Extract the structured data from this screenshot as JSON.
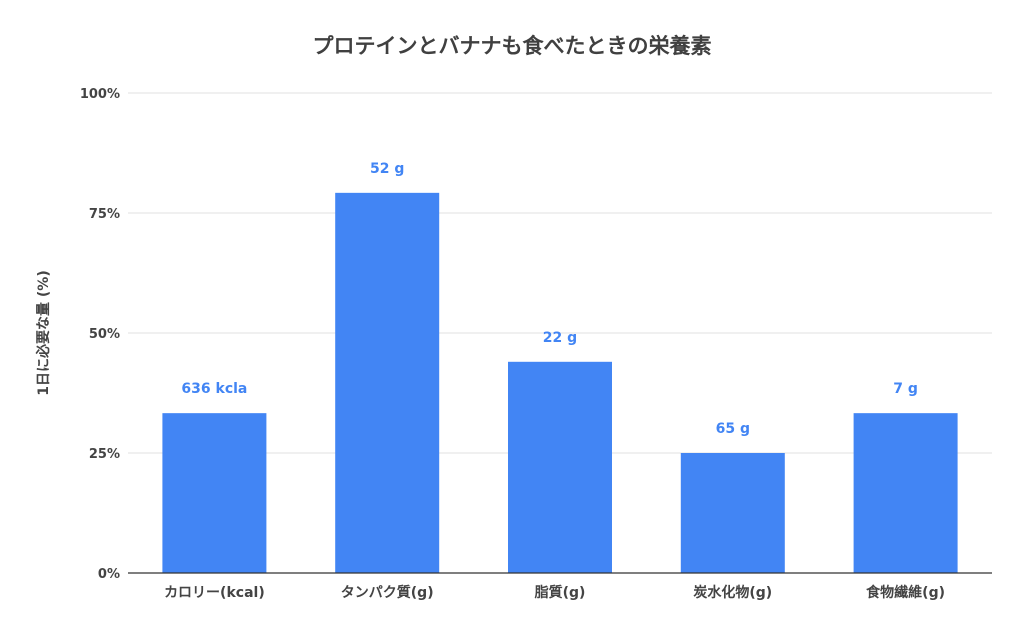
{
  "chart_data": {
    "type": "bar",
    "title": "プロテインとバナナも食べたときの栄養素",
    "xlabel": "",
    "ylabel": "1日に必要な量 (%)",
    "categories": [
      "カロリー(kcal)",
      "タンパク質(g)",
      "脂質(g)",
      "炭水化物(g)",
      "食物繊維(g)"
    ],
    "values": [
      33.3,
      79.2,
      44.0,
      25.0,
      33.3
    ],
    "data_labels": [
      "636 kcla",
      "52 g",
      "22 g",
      "65 g",
      "7 g"
    ],
    "ylim": [
      0,
      100
    ],
    "yticks": [
      0,
      25,
      50,
      75,
      100
    ],
    "ytick_labels": [
      "0%",
      "25%",
      "50%",
      "75%",
      "100%"
    ],
    "grid": true,
    "legend": "none",
    "colors": {
      "bar": "#4285f4",
      "label": "#4285f4",
      "grid": "#e0e0e0",
      "axis": "#333333",
      "text": "#444444"
    }
  }
}
